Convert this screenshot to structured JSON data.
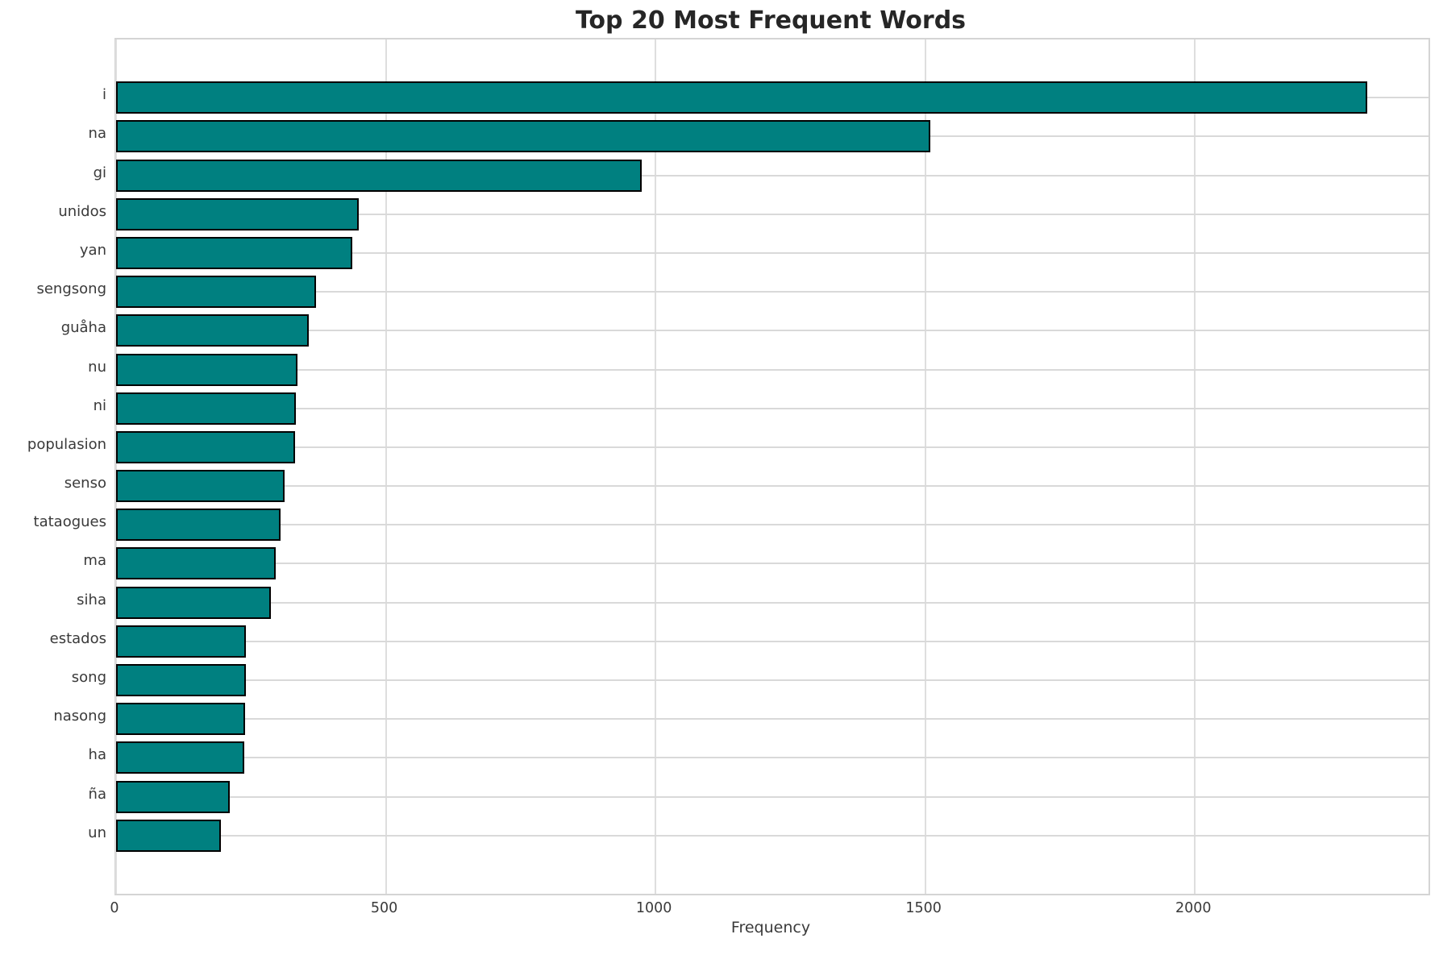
{
  "title": "Top 20 Most Frequent Words",
  "chart_data": {
    "type": "bar",
    "orientation": "horizontal",
    "title": "Top 20 Most Frequent Words",
    "xlabel": "Frequency",
    "ylabel": "",
    "categories": [
      "i",
      "na",
      "gi",
      "unidos",
      "yan",
      "sengsong",
      "guåha",
      "nu",
      "ni",
      "populasion",
      "senso",
      "tataogues",
      "ma",
      "siha",
      "estados",
      "song",
      "nasong",
      "ha",
      "ña",
      "un"
    ],
    "values": [
      2320,
      1510,
      975,
      450,
      438,
      371,
      357,
      336,
      334,
      332,
      312,
      305,
      296,
      287,
      241,
      240,
      239,
      237,
      211,
      194
    ],
    "x_ticks": [
      0,
      500,
      1000,
      1500,
      2000
    ],
    "xlim": [
      0,
      2433
    ],
    "grid": true,
    "legend": "none",
    "bar_color": "#008080",
    "bar_edge_color": "#000000",
    "grid_color": "#d9d9d9",
    "background_color": "#ffffff",
    "text_color": "#3a3a3a",
    "title_color": "#262626"
  }
}
